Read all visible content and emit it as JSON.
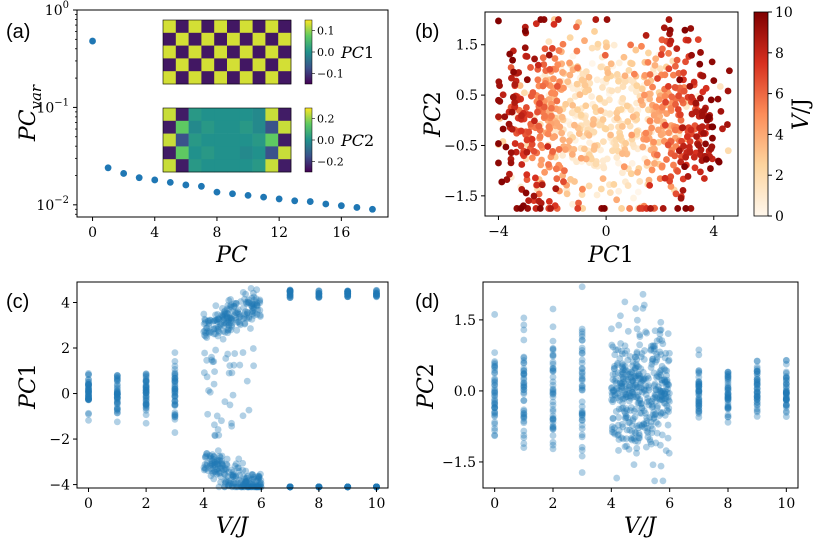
{
  "panels": {
    "a": "(a)",
    "b": "(b)",
    "c": "(c)",
    "d": "(d)"
  },
  "colors": {
    "point": "#1f77b4",
    "viridis": [
      "#440154",
      "#3b528b",
      "#21918c",
      "#5ec962",
      "#fde725"
    ],
    "orrd": [
      "#fff7ec",
      "#fdd49e",
      "#fc8d59",
      "#d7301f",
      "#7f0000"
    ]
  },
  "chart_data": [
    {
      "id": "a",
      "type": "scatter",
      "yscale": "log",
      "xlabel": "PC",
      "ylabel": "PC_var",
      "ylabel_main": "PC",
      "ylabel_sub": "var",
      "xlim": [
        -1,
        19
      ],
      "ylim": [
        0.0075,
        1.0
      ],
      "xticks": [
        0,
        4,
        8,
        12,
        16
      ],
      "yticks": [
        {
          "value": 1.0,
          "base": "10",
          "exp": "0"
        },
        {
          "value": 0.1,
          "base": "10",
          "exp": "−1"
        },
        {
          "value": 0.01,
          "base": "10",
          "exp": "−2"
        }
      ],
      "x": [
        0,
        1,
        2,
        3,
        4,
        5,
        6,
        7,
        8,
        9,
        10,
        11,
        12,
        13,
        14,
        15,
        16,
        17,
        18
      ],
      "values": [
        0.48,
        0.024,
        0.021,
        0.019,
        0.018,
        0.017,
        0.016,
        0.0155,
        0.0135,
        0.013,
        0.0125,
        0.012,
        0.0115,
        0.011,
        0.0108,
        0.0102,
        0.0098,
        0.0094,
        0.009
      ],
      "insets": [
        {
          "name": "PC1",
          "label_main": "PC",
          "label_num": "1",
          "colorbar_ticks": [
            "0.1",
            "0.0",
            "−0.1"
          ],
          "colorbar_ticks_value": [
            0.1,
            0.0,
            -0.1
          ],
          "colorbar_range": [
            -0.15,
            0.15
          ],
          "pattern": [
            [
              0.13,
              -0.13,
              0.13,
              -0.13,
              0.13,
              -0.13,
              0.13,
              -0.13,
              0.13,
              -0.13
            ],
            [
              -0.13,
              0.13,
              -0.13,
              0.13,
              -0.13,
              0.13,
              -0.13,
              0.13,
              -0.13,
              0.13
            ],
            [
              0.13,
              -0.13,
              0.13,
              -0.13,
              0.13,
              -0.13,
              0.13,
              -0.13,
              0.13,
              -0.13
            ],
            [
              -0.13,
              0.13,
              -0.13,
              0.13,
              -0.13,
              0.13,
              -0.13,
              0.13,
              -0.13,
              0.13
            ],
            [
              0.13,
              -0.13,
              0.13,
              -0.13,
              0.13,
              -0.13,
              0.13,
              -0.13,
              0.13,
              -0.13
            ]
          ]
        },
        {
          "name": "PC2",
          "label_main": "PC",
          "label_num": "2",
          "colorbar_ticks": [
            "0.2",
            "0.0",
            "−0.2"
          ],
          "colorbar_ticks_value": [
            0.2,
            0.0,
            -0.2
          ],
          "colorbar_range": [
            -0.3,
            0.3
          ],
          "pattern": [
            [
              0.25,
              -0.25,
              0.02,
              0.0,
              0.0,
              0.0,
              0.0,
              -0.02,
              0.25,
              -0.25
            ],
            [
              -0.25,
              0.15,
              -0.02,
              0.02,
              0.0,
              0.0,
              0.02,
              -0.02,
              -0.15,
              0.25
            ],
            [
              0.25,
              -0.15,
              0.02,
              0.0,
              0.0,
              0.0,
              0.0,
              0.02,
              0.15,
              -0.25
            ],
            [
              -0.25,
              0.15,
              0.0,
              0.02,
              0.0,
              0.0,
              -0.02,
              0.0,
              -0.15,
              0.25
            ],
            [
              0.25,
              -0.25,
              0.02,
              0.0,
              0.0,
              0.0,
              0.0,
              0.02,
              0.25,
              -0.25
            ]
          ]
        }
      ]
    },
    {
      "id": "b",
      "type": "scatter",
      "xlabel": "PC1",
      "ylabel": "PC2",
      "xlabel_main": "PC",
      "xlabel_num": "1",
      "ylabel_main": "PC",
      "ylabel_num": "2",
      "xlim": [
        -4.5,
        4.9
      ],
      "ylim": [
        -1.9,
        2.15
      ],
      "xticks": [
        -4,
        0,
        4
      ],
      "xtick_labels": [
        "−4",
        "0",
        "4"
      ],
      "yticks": [
        1.5,
        0.5,
        -0.5,
        -1.5
      ],
      "ytick_labels": [
        "1.5",
        "0.5",
        "−0.5",
        "−1.5"
      ],
      "colorbar_label": "V/J",
      "colorbar_label_main": "V",
      "colorbar_label_tail": "/J",
      "colorbar_range": [
        0,
        10
      ],
      "colorbar_ticks": [
        "10",
        "8",
        "6",
        "4",
        "2",
        "0"
      ],
      "colorbar_ticks_value": [
        10,
        8,
        6,
        4,
        2,
        0
      ],
      "n_points": 900
    },
    {
      "id": "c",
      "type": "scatter",
      "xlabel": "V/J",
      "ylabel": "PC1",
      "ylabel_main": "PC",
      "ylabel_num": "1",
      "xlim": [
        -0.4,
        10.4
      ],
      "ylim": [
        -4.15,
        4.9
      ],
      "xticks": [
        0,
        2,
        4,
        6,
        8,
        10
      ],
      "yticks": [
        4,
        2,
        0,
        -2,
        -4
      ],
      "ytick_labels": [
        "4",
        "2",
        "0",
        "−2",
        "−4"
      ],
      "n_points": 900
    },
    {
      "id": "d",
      "type": "scatter",
      "xlabel": "V/J",
      "ylabel": "PC2",
      "ylabel_main": "PC",
      "ylabel_num": "2",
      "xlim": [
        -0.4,
        10.4
      ],
      "ylim": [
        -2.05,
        2.3
      ],
      "xticks": [
        0,
        2,
        4,
        6,
        8,
        10
      ],
      "yticks": [
        1.5,
        0.0,
        -1.5
      ],
      "ytick_labels": [
        "1.5",
        "0.0",
        "−1.5"
      ],
      "n_points": 900
    }
  ]
}
